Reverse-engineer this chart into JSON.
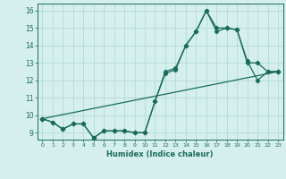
{
  "title": "",
  "xlabel": "Humidex (Indice chaleur)",
  "ylabel": "",
  "bg_color": "#d5efec",
  "grid_color": "#b8ddd9",
  "line_color": "#1a6b5e",
  "xlim": [
    -0.5,
    23.5
  ],
  "ylim": [
    8.6,
    16.4
  ],
  "xticks": [
    0,
    1,
    2,
    3,
    4,
    5,
    6,
    7,
    8,
    9,
    10,
    11,
    12,
    13,
    14,
    15,
    16,
    17,
    18,
    19,
    20,
    21,
    22,
    23
  ],
  "yticks": [
    9,
    10,
    11,
    12,
    13,
    14,
    15,
    16
  ],
  "line1_x": [
    0,
    1,
    2,
    3,
    4,
    5,
    6,
    7,
    8,
    9,
    10,
    11,
    12,
    13,
    14,
    15,
    16,
    17,
    18,
    19,
    20,
    21,
    22,
    23
  ],
  "line1_y": [
    9.8,
    9.6,
    9.2,
    9.5,
    9.5,
    8.7,
    9.1,
    9.1,
    9.1,
    9.0,
    9.0,
    10.8,
    12.5,
    12.7,
    14.0,
    14.8,
    16.0,
    14.8,
    15.0,
    14.9,
    13.0,
    13.0,
    12.5,
    12.5
  ],
  "line2_x": [
    0,
    1,
    2,
    3,
    4,
    5,
    6,
    7,
    8,
    9,
    10,
    11,
    12,
    13,
    14,
    15,
    16,
    17,
    18,
    19,
    20,
    21,
    22,
    23
  ],
  "line2_y": [
    9.8,
    9.6,
    9.2,
    9.5,
    9.5,
    8.7,
    9.1,
    9.1,
    9.1,
    9.0,
    9.0,
    10.8,
    12.4,
    12.6,
    14.0,
    14.8,
    16.0,
    15.0,
    15.0,
    14.9,
    13.1,
    12.0,
    12.5,
    12.5
  ],
  "line3_x": [
    0,
    23
  ],
  "line3_y": [
    9.8,
    12.5
  ]
}
